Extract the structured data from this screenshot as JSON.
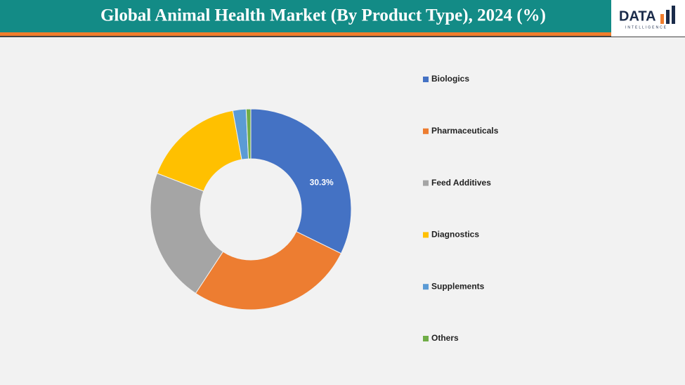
{
  "logo": {
    "text": "DATA",
    "subtitle": "INTELLIGENCE"
  },
  "chart_data": {
    "type": "donut",
    "title": "Global Animal Health Market (By Product Type), 2024 (%)",
    "categories": [
      "Biologics",
      "Pharmaceuticals",
      "Feed Additives",
      "Diagnostics",
      "Supplements",
      "Others"
    ],
    "values": [
      30.3,
      25.4,
      20.3,
      15.3,
      2.0,
      0.7
    ],
    "value_labels": [
      "30.3%",
      null,
      null,
      null,
      null,
      null
    ],
    "colors": [
      "#4472c4",
      "#ed7d31",
      "#a5a5a5",
      "#ffc000",
      "#5b9bd5",
      "#70ad47"
    ],
    "legend": "right"
  }
}
